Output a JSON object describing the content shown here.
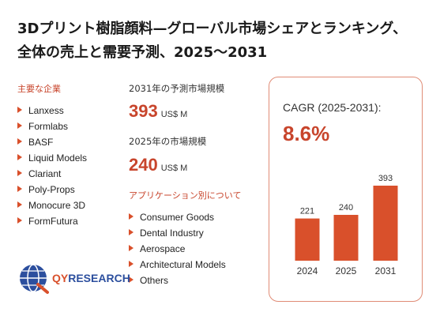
{
  "title": "3Dプリント樹脂顔料—グローバル市場シェアとランキング、全体の売上と需要予測、2025〜2031",
  "companies_label": "主要な企業",
  "companies": [
    "Lanxess",
    "Formlabs",
    "BASF",
    "Liquid Models",
    "Clariant",
    "Poly-Props",
    "Monocure 3D",
    "FormFutura"
  ],
  "forecast_label": "2031年の予測市場規模",
  "forecast_value": "393",
  "forecast_unit": "US$ M",
  "current_label": "2025年の市場規模",
  "current_value": "240",
  "current_unit": "US$ M",
  "applications_label": "アプリケーション別について",
  "applications": [
    "Consumer Goods",
    "Dental Industry",
    "Aerospace",
    "Architectural Models",
    "Others"
  ],
  "cagr_label": "CAGR (2025-2031):",
  "cagr_value": "8.6%",
  "logo_text": {
    "accent": "QY",
    "rest": "RESEARCH"
  },
  "colors": {
    "accent": "#d9502b",
    "bar": "#d9502b",
    "brand_blue": "#2c4f9e"
  },
  "chart_data": {
    "type": "bar",
    "categories": [
      "2024",
      "2025",
      "2031"
    ],
    "values": [
      221,
      240,
      393
    ],
    "title": "",
    "xlabel": "",
    "ylabel": "",
    "ylim": [
      0,
      393
    ],
    "grid": false,
    "data_labels": true
  }
}
